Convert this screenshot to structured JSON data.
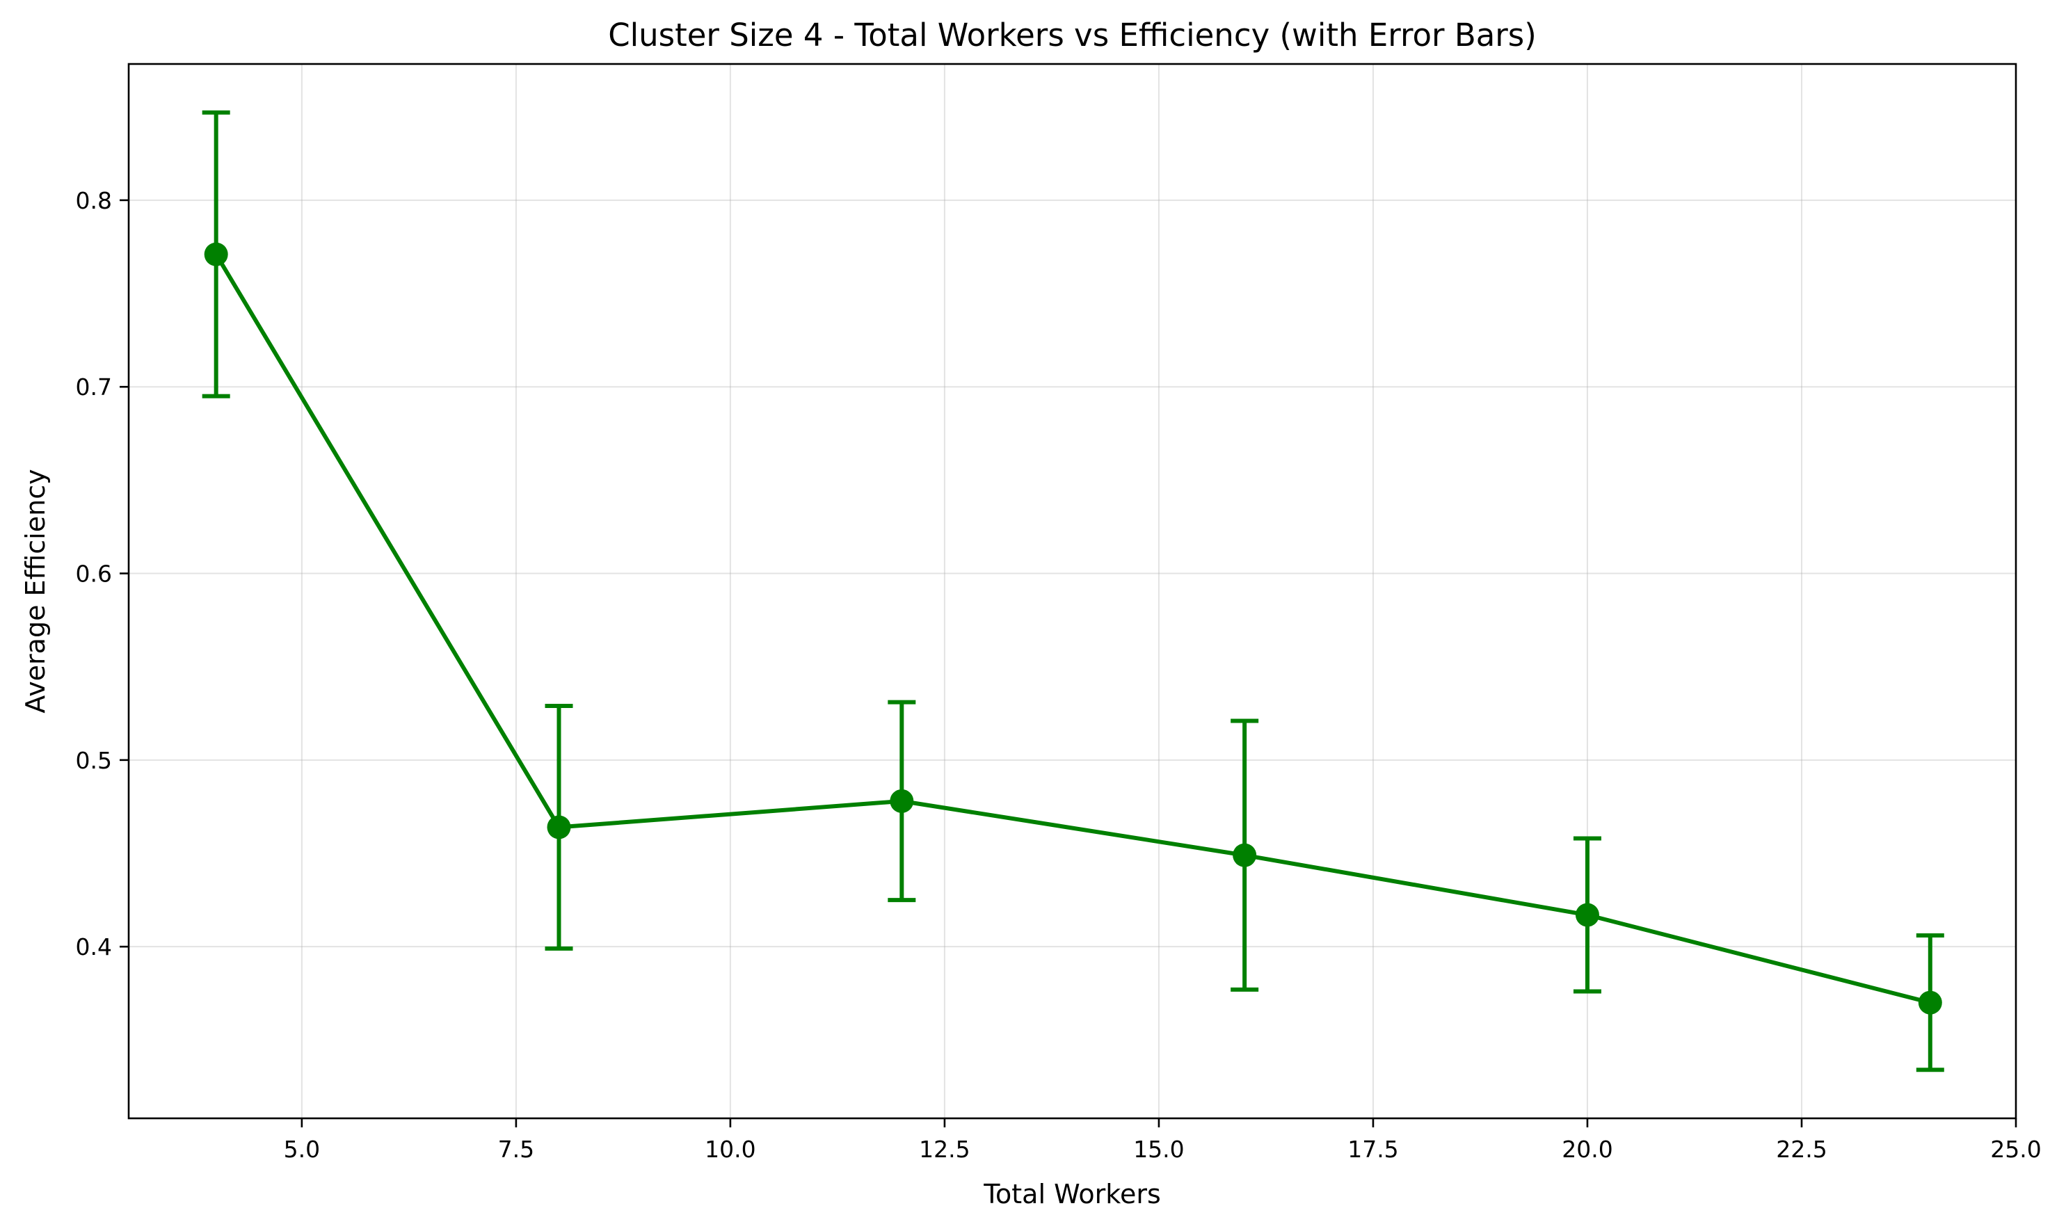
{
  "chart_data": {
    "type": "line",
    "title": "Cluster Size 4 - Total Workers vs Efficiency (with Error Bars)",
    "xlabel": "Total Workers",
    "ylabel": "Average Efficiency",
    "xlim": [
      2.98,
      25.0
    ],
    "ylim": [
      0.308,
      0.873
    ],
    "x_ticks": [
      5.0,
      7.5,
      10.0,
      12.5,
      15.0,
      17.5,
      20.0,
      22.5,
      25.0
    ],
    "x_tick_labels": [
      "5.0",
      "7.5",
      "10.0",
      "12.5",
      "15.0",
      "17.5",
      "20.0",
      "22.5",
      "25.0"
    ],
    "y_ticks": [
      0.4,
      0.5,
      0.6,
      0.7,
      0.8
    ],
    "y_tick_labels": [
      "0.4",
      "0.5",
      "0.6",
      "0.7",
      "0.8"
    ],
    "grid": true,
    "series": [
      {
        "color": "#008000",
        "marker": "circle",
        "x": [
          4,
          8,
          12,
          16,
          20,
          24
        ],
        "y": [
          0.771,
          0.464,
          0.478,
          0.449,
          0.417,
          0.37
        ],
        "error": [
          0.076,
          0.065,
          0.053,
          0.072,
          0.041,
          0.036
        ]
      }
    ]
  }
}
